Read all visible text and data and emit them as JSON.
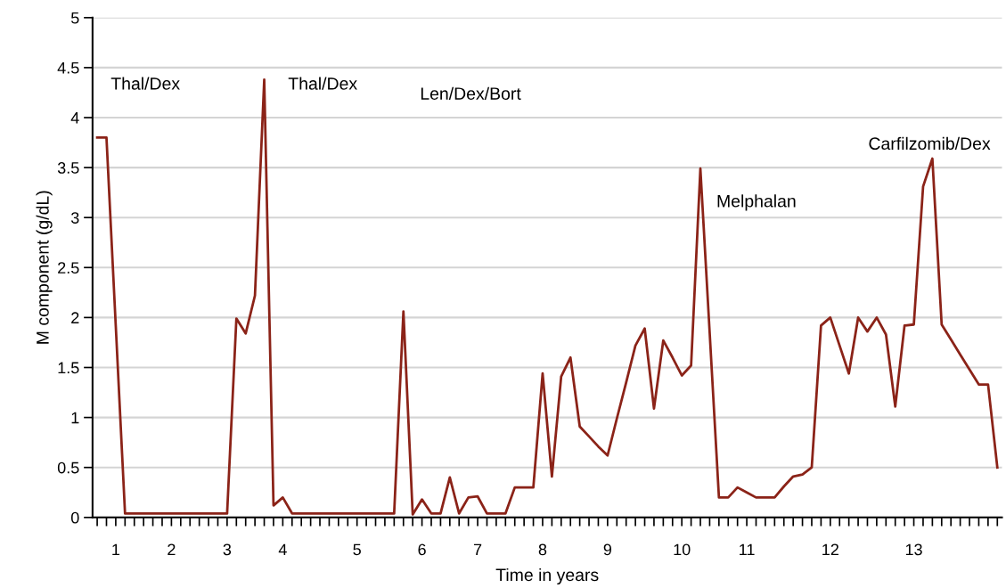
{
  "chart_data": {
    "type": "line",
    "xlabel": "Time in years",
    "ylabel": "M component (g/dL)",
    "categories": [
      null,
      null,
      "1",
      null,
      null,
      null,
      null,
      null,
      "2",
      null,
      null,
      null,
      null,
      null,
      "3",
      null,
      null,
      null,
      null,
      null,
      "4",
      null,
      null,
      null,
      null,
      null,
      null,
      null,
      "5",
      null,
      null,
      null,
      null,
      null,
      null,
      "6",
      null,
      null,
      null,
      null,
      null,
      "7",
      null,
      null,
      null,
      null,
      null,
      null,
      "8",
      null,
      null,
      null,
      null,
      null,
      null,
      "9",
      null,
      null,
      null,
      null,
      null,
      null,
      null,
      "10",
      null,
      null,
      null,
      null,
      null,
      null,
      "11",
      null,
      null,
      null,
      null,
      null,
      null,
      null,
      null,
      "12",
      null,
      null,
      null,
      null,
      null,
      null,
      null,
      null,
      "13",
      null,
      null,
      null,
      null,
      null,
      null,
      null,
      null,
      null
    ],
    "series": [
      {
        "color": "#8b2318",
        "values": [
          3.8,
          3.8,
          1.92,
          0.04,
          0.04,
          0.04,
          0.04,
          0.04,
          0.04,
          0.04,
          0.04,
          0.04,
          0.04,
          0.04,
          0.04,
          1.99,
          1.84,
          2.22,
          4.38,
          0.12,
          0.2,
          0.04,
          0.04,
          0.04,
          0.04,
          0.04,
          0.04,
          0.04,
          0.04,
          0.04,
          0.04,
          0.04,
          0.04,
          2.06,
          0.03,
          0.18,
          0.04,
          0.04,
          0.4,
          0.04,
          0.2,
          0.21,
          0.04,
          0.04,
          0.04,
          0.3,
          0.3,
          0.3,
          1.44,
          0.41,
          1.41,
          1.6,
          0.91,
          0.81,
          0.71,
          0.62,
          0.99,
          1.35,
          1.72,
          1.89,
          1.09,
          1.77,
          1.6,
          1.42,
          1.52,
          3.49,
          1.85,
          0.2,
          0.2,
          0.3,
          0.25,
          0.2,
          0.2,
          0.2,
          0.31,
          0.41,
          0.43,
          0.5,
          1.92,
          2.0,
          1.72,
          1.44,
          2.0,
          1.86,
          2.0,
          1.83,
          1.11,
          1.92,
          1.93,
          3.31,
          3.59,
          1.93,
          1.78,
          1.63,
          1.48,
          1.33,
          1.33,
          0.5
        ]
      }
    ],
    "ylim": [
      0,
      5
    ],
    "yticks": [
      0,
      0.5,
      1,
      1.5,
      2,
      2.5,
      3,
      3.5,
      4,
      4.5,
      5
    ],
    "grid": "y",
    "legend": false,
    "marker": "none",
    "line_style": "solid",
    "annotations": [
      "Thal/Dex",
      "Thal/Dex",
      "Len/Dex/Bort",
      "Melphalan",
      "Carfilzomib/Dex"
    ]
  }
}
